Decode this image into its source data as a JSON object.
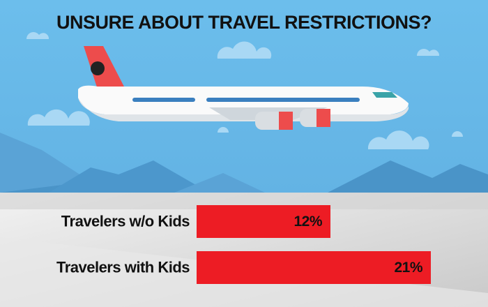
{
  "chart_data": {
    "type": "bar",
    "orientation": "horizontal",
    "title": "UNSURE ABOUT TRAVEL RESTRICTIONS?",
    "categories": [
      "Travelers w/o Kids",
      "Travelers with Kids"
    ],
    "values": [
      12,
      21
    ],
    "value_labels": [
      "12%",
      "21%"
    ],
    "color": "#ed1c24"
  }
}
